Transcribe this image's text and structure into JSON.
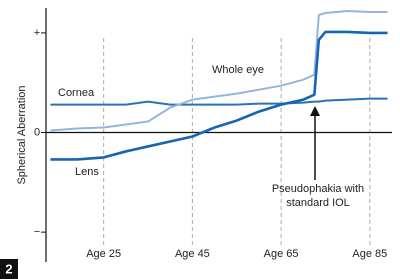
{
  "chart_data": {
    "type": "line",
    "y_label": "Spherical Aberration",
    "x": [
      13,
      19,
      25,
      30,
      35,
      40,
      45,
      50,
      55,
      60,
      65,
      70,
      72.5,
      73.5,
      75,
      80,
      85,
      89
    ],
    "series": [
      {
        "name": "Cornea",
        "color": "#2a72b5",
        "width": 2,
        "values": [
          0.28,
          0.28,
          0.28,
          0.28,
          0.31,
          0.28,
          0.28,
          0.28,
          0.28,
          0.29,
          0.29,
          0.3,
          0.31,
          0.31,
          0.32,
          0.33,
          0.34,
          0.34
        ]
      },
      {
        "name": "Whole eye",
        "color": "#93b6dd",
        "width": 2,
        "values": [
          0.02,
          0.04,
          0.05,
          0.08,
          0.11,
          0.25,
          0.33,
          0.36,
          0.39,
          0.43,
          0.47,
          0.53,
          0.58,
          1.18,
          1.2,
          1.22,
          1.21,
          1.21
        ]
      },
      {
        "name": "Lens",
        "color": "#1565b0",
        "width": 2.6,
        "values": [
          -0.27,
          -0.27,
          -0.25,
          -0.19,
          -0.14,
          -0.09,
          -0.04,
          0.05,
          0.12,
          0.21,
          0.28,
          0.33,
          0.38,
          0.93,
          1.01,
          1.01,
          1.0,
          1.0
        ]
      }
    ],
    "xlim": [
      12,
      90
    ],
    "xticks": [
      {
        "value": 25,
        "label": "Age 25"
      },
      {
        "value": 45,
        "label": "Age 45"
      },
      {
        "value": 65,
        "label": "Age 65"
      },
      {
        "value": 85,
        "label": "Age 85"
      }
    ],
    "ylim": [
      -1.3,
      1.25
    ],
    "yticks": [
      {
        "value": 1,
        "label": "+"
      },
      0,
      {
        "value": -1,
        "label": "−"
      }
    ],
    "grid": true,
    "annotation_lines": [
      "Pseudophakia with",
      "standard IOL"
    ],
    "panel_label": "2"
  }
}
